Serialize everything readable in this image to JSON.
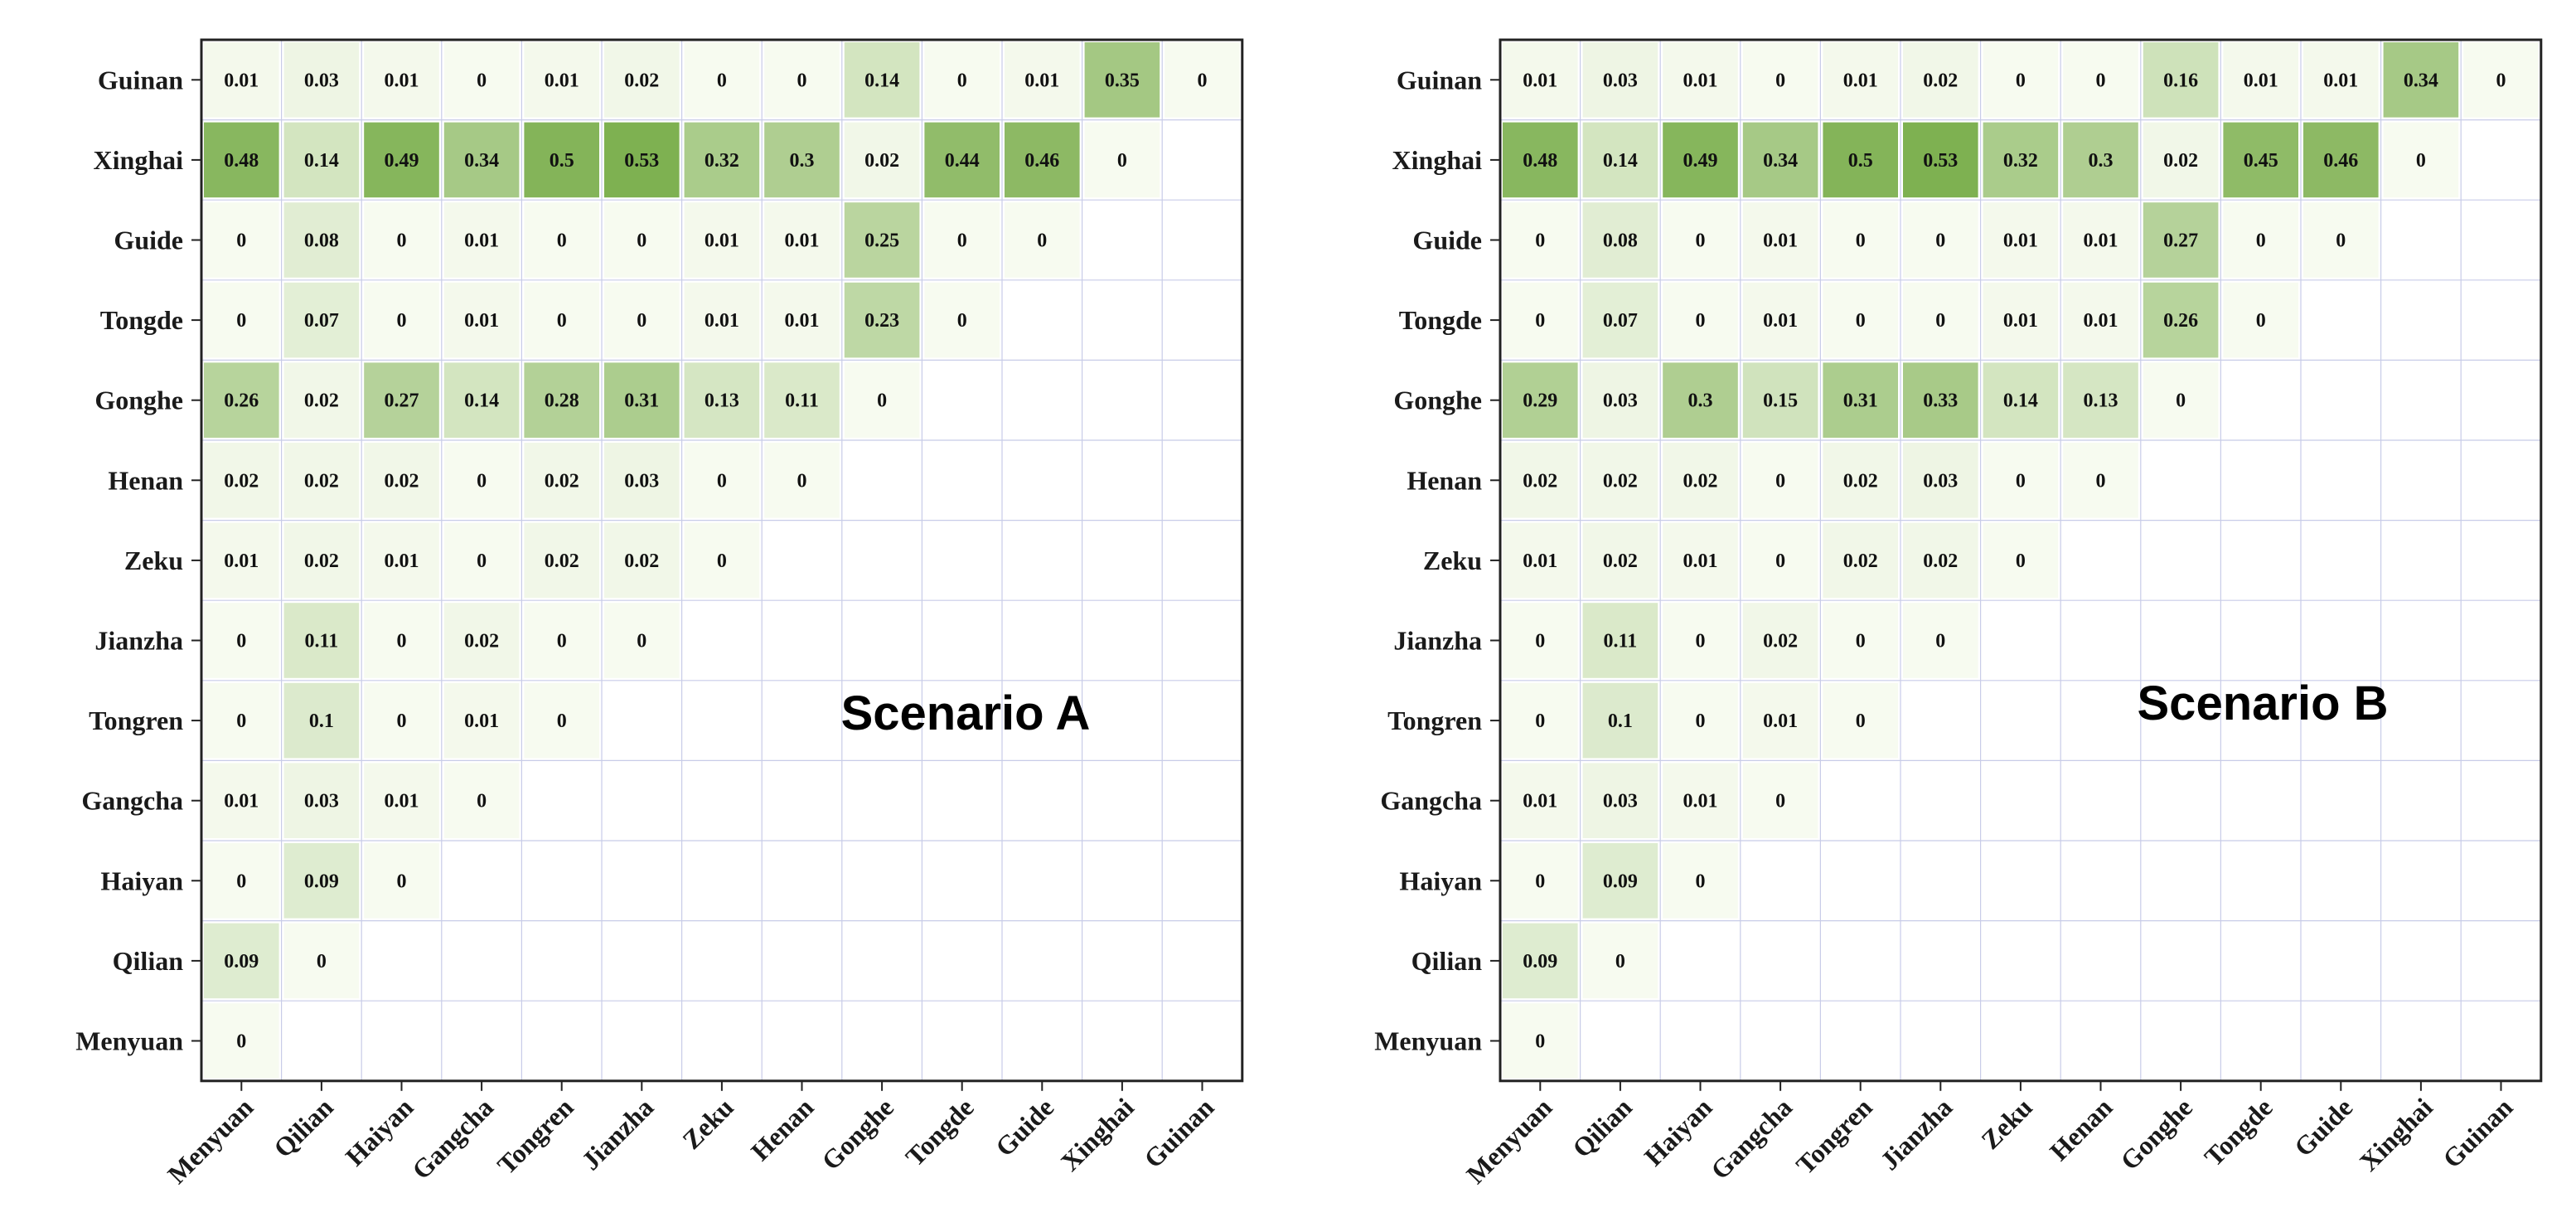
{
  "colors": {
    "low": "#f7fbf0",
    "high": "#7aae4c",
    "grid": "#c8cce8",
    "frame": "#222222"
  },
  "chart_data": [
    {
      "type": "heatmap",
      "title": "Scenario A",
      "x_categories": [
        "Menyuan",
        "Qilian",
        "Haiyan",
        "Gangcha",
        "Tongren",
        "Jianzha",
        "Zeku",
        "Henan",
        "Gonghe",
        "Tongde",
        "Guide",
        "Xinghai",
        "Guinan"
      ],
      "y_categories": [
        "Guinan",
        "Xinghai",
        "Guide",
        "Tongde",
        "Gonghe",
        "Henan",
        "Zeku",
        "Jianzha",
        "Tongren",
        "Gangcha",
        "Haiyan",
        "Qilian",
        "Menyuan"
      ],
      "value_range": [
        0,
        0.55
      ],
      "grid": true,
      "values": [
        [
          0.01,
          0.03,
          0.01,
          0,
          0.01,
          0.02,
          0,
          0,
          0.14,
          0,
          0.01,
          0.35,
          0
        ],
        [
          0.48,
          0.14,
          0.49,
          0.34,
          0.5,
          0.53,
          0.32,
          0.3,
          0.02,
          0.44,
          0.46,
          0
        ],
        [
          0,
          0.08,
          0,
          0.01,
          0,
          0,
          0.01,
          0.01,
          0.25,
          0,
          0
        ],
        [
          0,
          0.07,
          0,
          0.01,
          0,
          0,
          0.01,
          0.01,
          0.23,
          0
        ],
        [
          0.26,
          0.02,
          0.27,
          0.14,
          0.28,
          0.31,
          0.13,
          0.11,
          0
        ],
        [
          0.02,
          0.02,
          0.02,
          0,
          0.02,
          0.03,
          0,
          0
        ],
        [
          0.01,
          0.02,
          0.01,
          0,
          0.02,
          0.02,
          0
        ],
        [
          0,
          0.11,
          0,
          0.02,
          0,
          0
        ],
        [
          0,
          0.1,
          0,
          0.01,
          0
        ],
        [
          0.01,
          0.03,
          0.01,
          0
        ],
        [
          0,
          0.09,
          0
        ],
        [
          0.09,
          0
        ],
        [
          0
        ]
      ]
    },
    {
      "type": "heatmap",
      "title": "Scenario B",
      "x_categories": [
        "Menyuan",
        "Qilian",
        "Haiyan",
        "Gangcha",
        "Tongren",
        "Jianzha",
        "Zeku",
        "Henan",
        "Gonghe",
        "Tongde",
        "Guide",
        "Xinghai",
        "Guinan"
      ],
      "y_categories": [
        "Guinan",
        "Xinghai",
        "Guide",
        "Tongde",
        "Gonghe",
        "Henan",
        "Zeku",
        "Jianzha",
        "Tongren",
        "Gangcha",
        "Haiyan",
        "Qilian",
        "Menyuan"
      ],
      "value_range": [
        0,
        0.55
      ],
      "grid": true,
      "values": [
        [
          0.01,
          0.03,
          0.01,
          0,
          0.01,
          0.02,
          0,
          0,
          0.16,
          0.01,
          0.01,
          0.34,
          0
        ],
        [
          0.48,
          0.14,
          0.49,
          0.34,
          0.5,
          0.53,
          0.32,
          0.3,
          0.02,
          0.45,
          0.46,
          0
        ],
        [
          0,
          0.08,
          0,
          0.01,
          0,
          0,
          0.01,
          0.01,
          0.27,
          0,
          0
        ],
        [
          0,
          0.07,
          0,
          0.01,
          0,
          0,
          0.01,
          0.01,
          0.26,
          0
        ],
        [
          0.29,
          0.03,
          0.3,
          0.15,
          0.31,
          0.33,
          0.14,
          0.13,
          0
        ],
        [
          0.02,
          0.02,
          0.02,
          0,
          0.02,
          0.03,
          0,
          0
        ],
        [
          0.01,
          0.02,
          0.01,
          0,
          0.02,
          0.02,
          0
        ],
        [
          0,
          0.11,
          0,
          0.02,
          0,
          0
        ],
        [
          0,
          0.1,
          0,
          0.01,
          0
        ],
        [
          0.01,
          0.03,
          0.01,
          0
        ],
        [
          0,
          0.09,
          0
        ],
        [
          0.09,
          0
        ],
        [
          0
        ]
      ]
    }
  ]
}
